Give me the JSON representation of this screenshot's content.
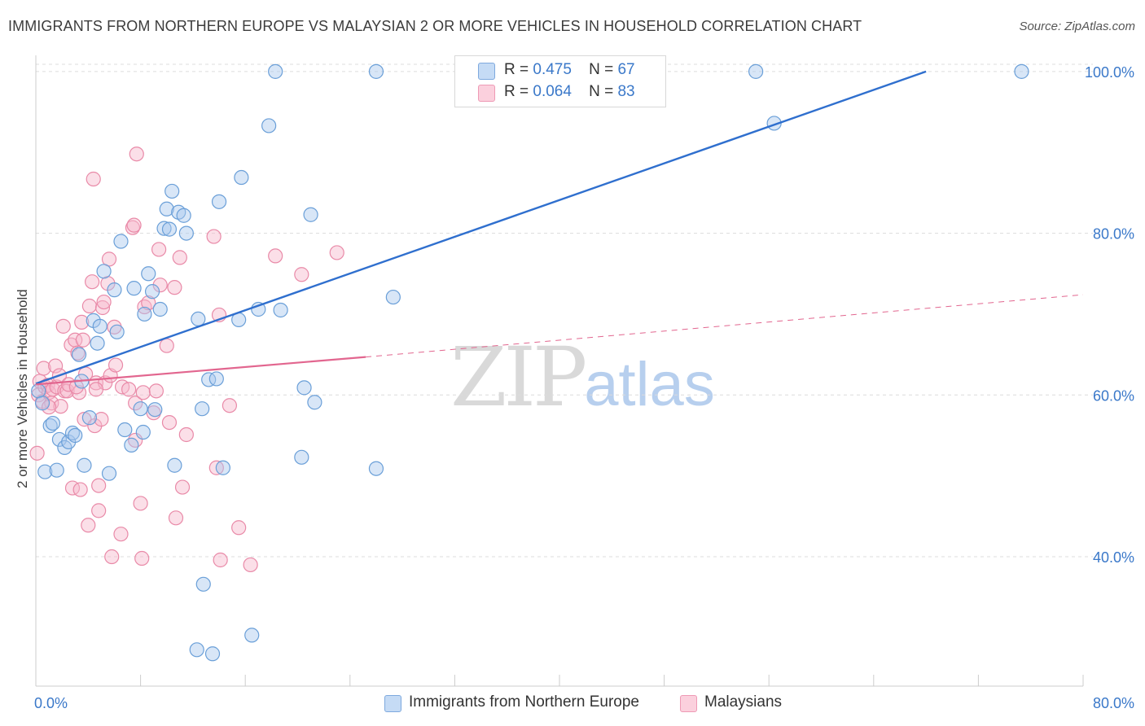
{
  "header": {
    "title": "IMMIGRANTS FROM NORTHERN EUROPE VS MALAYSIAN 2 OR MORE VEHICLES IN HOUSEHOLD CORRELATION CHART",
    "source": "Source: ZipAtlas.com"
  },
  "watermark": {
    "zip": "ZIP",
    "atlas": "atlas"
  },
  "legend": {
    "rows": [
      {
        "r_label": "R =",
        "r_value": "0.475",
        "n_label": "N =",
        "n_value": "67",
        "color": "#a9c8ee"
      },
      {
        "r_label": "R =",
        "r_value": "0.064",
        "n_label": "N =",
        "n_value": "83",
        "color": "#f7b9cc"
      }
    ]
  },
  "colors": {
    "blue_fill": "#a9c8ee",
    "blue_stroke": "#6a9fd8",
    "blue_line": "#2f6fce",
    "pink_fill": "#f7b9cc",
    "pink_stroke": "#e98aa8",
    "pink_line": "#e2668f",
    "axis_text": "#3a78c9",
    "grid": "#dcdcdc"
  },
  "chart_data": {
    "type": "scatter",
    "title": "IMMIGRANTS FROM NORTHERN EUROPE VS MALAYSIAN 2 OR MORE VEHICLES IN HOUSEHOLD CORRELATION CHART",
    "xlabel": "",
    "ylabel": "2 or more Vehicles in Household",
    "xlim": [
      0,
      80
    ],
    "ylim": [
      24,
      102
    ],
    "x_tick_labels": [
      "0.0%",
      "80.0%"
    ],
    "y_ticks": [
      40,
      60,
      80,
      100
    ],
    "y_tick_labels": [
      "40.0%",
      "60.0%",
      "80.0%",
      "100.0%"
    ],
    "grid": true,
    "legend_position": "top-center",
    "series": [
      {
        "name": "Immigrants from Northern Europe",
        "color": "#a9c8ee",
        "trend": {
          "x": [
            0,
            68
          ],
          "y": [
            61.4,
            100.0
          ],
          "style": "solid"
        },
        "points": [
          {
            "x": 0.2,
            "y": 60.5
          },
          {
            "x": 0.5,
            "y": 59.0
          },
          {
            "x": 0.7,
            "y": 50.5
          },
          {
            "x": 1.1,
            "y": 56.2
          },
          {
            "x": 1.3,
            "y": 56.5
          },
          {
            "x": 1.6,
            "y": 50.7
          },
          {
            "x": 1.8,
            "y": 54.5
          },
          {
            "x": 2.2,
            "y": 53.5
          },
          {
            "x": 2.5,
            "y": 54.2
          },
          {
            "x": 2.8,
            "y": 55.3
          },
          {
            "x": 3.0,
            "y": 55.0
          },
          {
            "x": 3.3,
            "y": 65.0
          },
          {
            "x": 3.5,
            "y": 61.7
          },
          {
            "x": 3.7,
            "y": 51.3
          },
          {
            "x": 4.1,
            "y": 57.2
          },
          {
            "x": 4.4,
            "y": 69.2
          },
          {
            "x": 4.7,
            "y": 66.4
          },
          {
            "x": 4.9,
            "y": 68.5
          },
          {
            "x": 5.2,
            "y": 75.3
          },
          {
            "x": 5.6,
            "y": 50.3
          },
          {
            "x": 6.0,
            "y": 73.0
          },
          {
            "x": 6.2,
            "y": 67.8
          },
          {
            "x": 6.5,
            "y": 79.0
          },
          {
            "x": 6.8,
            "y": 55.7
          },
          {
            "x": 7.3,
            "y": 53.8
          },
          {
            "x": 7.5,
            "y": 73.2
          },
          {
            "x": 8.0,
            "y": 58.3
          },
          {
            "x": 8.2,
            "y": 55.4
          },
          {
            "x": 8.3,
            "y": 70.0
          },
          {
            "x": 8.6,
            "y": 75.0
          },
          {
            "x": 8.9,
            "y": 72.8
          },
          {
            "x": 9.1,
            "y": 58.2
          },
          {
            "x": 9.5,
            "y": 70.6
          },
          {
            "x": 9.8,
            "y": 80.6
          },
          {
            "x": 10.0,
            "y": 83.0
          },
          {
            "x": 10.2,
            "y": 80.5
          },
          {
            "x": 10.4,
            "y": 85.2
          },
          {
            "x": 10.6,
            "y": 51.3
          },
          {
            "x": 10.9,
            "y": 82.6
          },
          {
            "x": 11.3,
            "y": 82.2
          },
          {
            "x": 11.5,
            "y": 80.0
          },
          {
            "x": 12.3,
            "y": 28.5
          },
          {
            "x": 12.4,
            "y": 69.4
          },
          {
            "x": 12.7,
            "y": 58.3
          },
          {
            "x": 12.8,
            "y": 36.6
          },
          {
            "x": 13.2,
            "y": 61.9
          },
          {
            "x": 13.5,
            "y": 28.0
          },
          {
            "x": 13.8,
            "y": 62.0
          },
          {
            "x": 14.0,
            "y": 83.9
          },
          {
            "x": 14.3,
            "y": 51.0
          },
          {
            "x": 15.5,
            "y": 69.3
          },
          {
            "x": 15.7,
            "y": 86.9
          },
          {
            "x": 16.5,
            "y": 30.3
          },
          {
            "x": 17.0,
            "y": 70.6
          },
          {
            "x": 17.8,
            "y": 93.3
          },
          {
            "x": 18.3,
            "y": 100.0
          },
          {
            "x": 18.7,
            "y": 70.5
          },
          {
            "x": 20.3,
            "y": 52.3
          },
          {
            "x": 20.5,
            "y": 60.9
          },
          {
            "x": 21.0,
            "y": 82.3
          },
          {
            "x": 21.3,
            "y": 59.1
          },
          {
            "x": 26.0,
            "y": 100.0
          },
          {
            "x": 26.0,
            "y": 50.9
          },
          {
            "x": 27.3,
            "y": 72.1
          },
          {
            "x": 55.0,
            "y": 100.0
          },
          {
            "x": 56.4,
            "y": 93.6
          },
          {
            "x": 75.3,
            "y": 100.0
          }
        ]
      },
      {
        "name": "Malaysians",
        "color": "#f7b9cc",
        "trend": {
          "x": [
            0,
            25.2
          ],
          "y": [
            61.3,
            64.7
          ],
          "style": "solid",
          "extended_to": [
            80,
            72.4
          ],
          "extended_style": "dashed"
        },
        "points": [
          {
            "x": 0.1,
            "y": 52.8
          },
          {
            "x": 0.2,
            "y": 60.0
          },
          {
            "x": 0.3,
            "y": 61.7
          },
          {
            "x": 0.5,
            "y": 59.2
          },
          {
            "x": 0.6,
            "y": 63.3
          },
          {
            "x": 0.7,
            "y": 61.0
          },
          {
            "x": 0.9,
            "y": 61.2
          },
          {
            "x": 1.0,
            "y": 60.3
          },
          {
            "x": 1.2,
            "y": 59.0
          },
          {
            "x": 1.3,
            "y": 60.7
          },
          {
            "x": 1.5,
            "y": 63.6
          },
          {
            "x": 1.6,
            "y": 61.0
          },
          {
            "x": 1.8,
            "y": 62.4
          },
          {
            "x": 1.9,
            "y": 58.6
          },
          {
            "x": 2.1,
            "y": 68.5
          },
          {
            "x": 2.2,
            "y": 60.5
          },
          {
            "x": 2.4,
            "y": 60.5
          },
          {
            "x": 2.5,
            "y": 61.3
          },
          {
            "x": 2.7,
            "y": 66.2
          },
          {
            "x": 2.8,
            "y": 48.5
          },
          {
            "x": 3.0,
            "y": 66.8
          },
          {
            "x": 3.2,
            "y": 65.2
          },
          {
            "x": 3.3,
            "y": 60.3
          },
          {
            "x": 3.4,
            "y": 48.3
          },
          {
            "x": 3.5,
            "y": 69.0
          },
          {
            "x": 3.6,
            "y": 66.8
          },
          {
            "x": 3.7,
            "y": 57.0
          },
          {
            "x": 3.8,
            "y": 62.6
          },
          {
            "x": 4.0,
            "y": 43.9
          },
          {
            "x": 4.1,
            "y": 71.0
          },
          {
            "x": 4.3,
            "y": 74.0
          },
          {
            "x": 4.4,
            "y": 86.7
          },
          {
            "x": 4.5,
            "y": 56.2
          },
          {
            "x": 4.6,
            "y": 61.5
          },
          {
            "x": 4.8,
            "y": 45.7
          },
          {
            "x": 4.8,
            "y": 48.8
          },
          {
            "x": 5.0,
            "y": 57.0
          },
          {
            "x": 5.1,
            "y": 70.8
          },
          {
            "x": 5.2,
            "y": 71.5
          },
          {
            "x": 5.3,
            "y": 61.5
          },
          {
            "x": 5.5,
            "y": 73.8
          },
          {
            "x": 5.6,
            "y": 76.8
          },
          {
            "x": 5.7,
            "y": 62.4
          },
          {
            "x": 5.8,
            "y": 40.0
          },
          {
            "x": 6.0,
            "y": 68.4
          },
          {
            "x": 6.1,
            "y": 63.7
          },
          {
            "x": 6.5,
            "y": 42.8
          },
          {
            "x": 6.6,
            "y": 61.0
          },
          {
            "x": 7.4,
            "y": 80.7
          },
          {
            "x": 7.5,
            "y": 81.0
          },
          {
            "x": 7.6,
            "y": 54.4
          },
          {
            "x": 7.6,
            "y": 59.0
          },
          {
            "x": 7.7,
            "y": 89.8
          },
          {
            "x": 8.0,
            "y": 46.6
          },
          {
            "x": 8.1,
            "y": 39.8
          },
          {
            "x": 8.2,
            "y": 60.3
          },
          {
            "x": 8.3,
            "y": 70.9
          },
          {
            "x": 8.6,
            "y": 71.4
          },
          {
            "x": 9.0,
            "y": 57.8
          },
          {
            "x": 9.2,
            "y": 60.5
          },
          {
            "x": 9.4,
            "y": 78.0
          },
          {
            "x": 9.5,
            "y": 73.6
          },
          {
            "x": 10.0,
            "y": 66.1
          },
          {
            "x": 10.2,
            "y": 56.6
          },
          {
            "x": 10.6,
            "y": 73.3
          },
          {
            "x": 10.7,
            "y": 44.8
          },
          {
            "x": 11.0,
            "y": 77.0
          },
          {
            "x": 11.2,
            "y": 48.6
          },
          {
            "x": 11.5,
            "y": 55.1
          },
          {
            "x": 13.6,
            "y": 79.6
          },
          {
            "x": 13.8,
            "y": 51.0
          },
          {
            "x": 14.0,
            "y": 69.9
          },
          {
            "x": 14.1,
            "y": 39.6
          },
          {
            "x": 14.8,
            "y": 58.7
          },
          {
            "x": 15.5,
            "y": 43.6
          },
          {
            "x": 16.4,
            "y": 39.0
          },
          {
            "x": 18.3,
            "y": 77.2
          },
          {
            "x": 20.3,
            "y": 74.9
          },
          {
            "x": 23.0,
            "y": 77.6
          },
          {
            "x": 4.6,
            "y": 60.7
          },
          {
            "x": 7.1,
            "y": 60.7
          },
          {
            "x": 3.1,
            "y": 61.0
          },
          {
            "x": 1.0,
            "y": 58.5
          }
        ]
      }
    ]
  }
}
